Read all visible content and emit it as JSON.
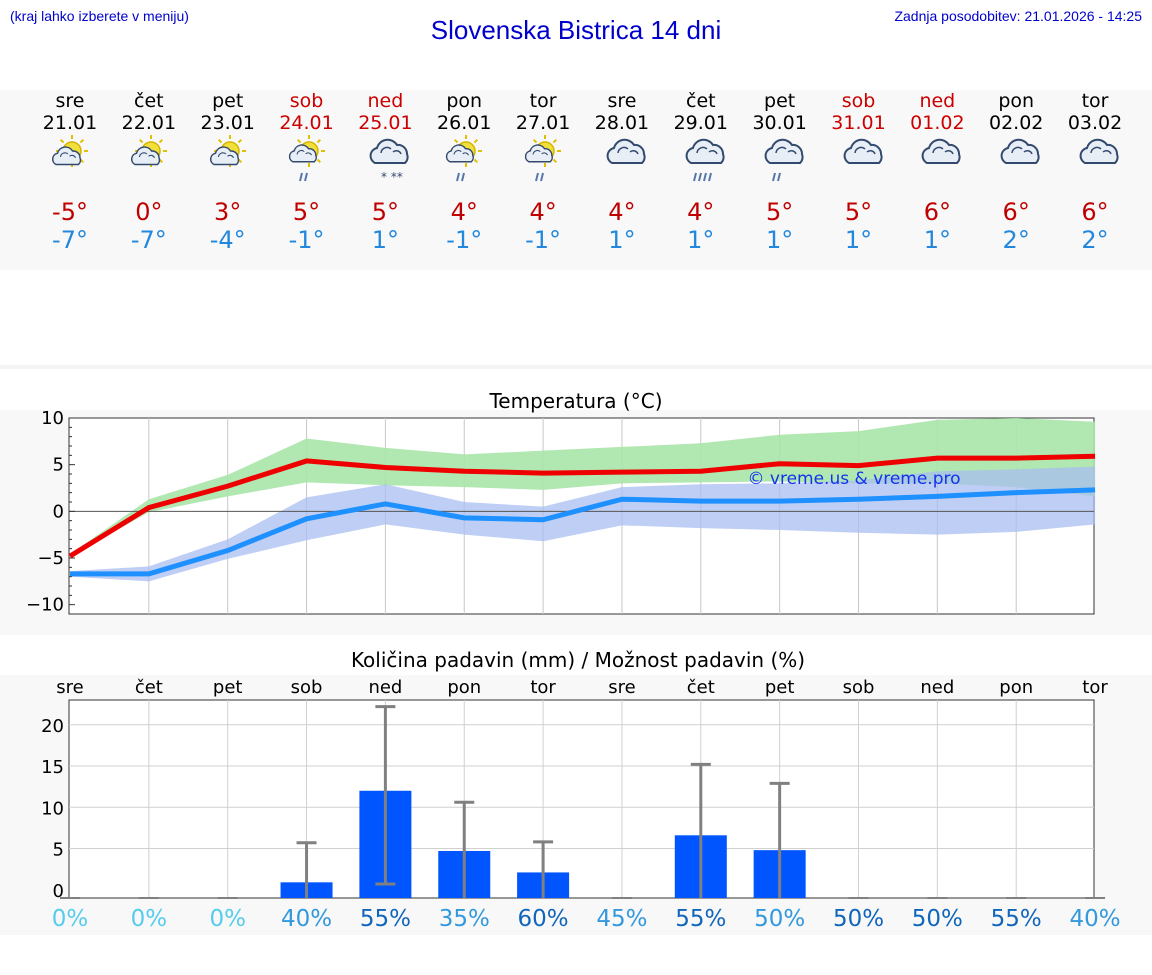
{
  "header": {
    "hint": "(kraj lahko izberete v meniju)",
    "title": "Slovenska Bistrica 14 dni",
    "updated": "Zadnja posodobitev: 21.01.2026 - 14:25"
  },
  "days": [
    {
      "name": "sre",
      "date": "21.01",
      "weekend": false,
      "icon": "sun-cloud-icon",
      "max": "-5°",
      "min": "-7°"
    },
    {
      "name": "čet",
      "date": "22.01",
      "weekend": false,
      "icon": "sun-cloud-icon",
      "max": "0°",
      "min": "-7°"
    },
    {
      "name": "pet",
      "date": "23.01",
      "weekend": false,
      "icon": "sun-cloud-icon",
      "max": "3°",
      "min": "-4°"
    },
    {
      "name": "sob",
      "date": "24.01",
      "weekend": true,
      "icon": "sun-cloud-rain-icon",
      "max": "5°",
      "min": "-1°"
    },
    {
      "name": "ned",
      "date": "25.01",
      "weekend": true,
      "icon": "cloud-snow-icon",
      "max": "5°",
      "min": "1°"
    },
    {
      "name": "pon",
      "date": "26.01",
      "weekend": false,
      "icon": "sun-cloud-rain-icon",
      "max": "4°",
      "min": "-1°"
    },
    {
      "name": "tor",
      "date": "27.01",
      "weekend": false,
      "icon": "sun-cloud-rain-icon",
      "max": "4°",
      "min": "-1°"
    },
    {
      "name": "sre",
      "date": "28.01",
      "weekend": false,
      "icon": "cloud-icon",
      "max": "4°",
      "min": "1°"
    },
    {
      "name": "čet",
      "date": "29.01",
      "weekend": false,
      "icon": "cloud-heavy-rain-icon",
      "max": "4°",
      "min": "1°"
    },
    {
      "name": "pet",
      "date": "30.01",
      "weekend": false,
      "icon": "cloud-rain-icon",
      "max": "5°",
      "min": "1°"
    },
    {
      "name": "sob",
      "date": "31.01",
      "weekend": true,
      "icon": "cloud-icon",
      "max": "5°",
      "min": "1°"
    },
    {
      "name": "ned",
      "date": "01.02",
      "weekend": true,
      "icon": "cloud-icon",
      "max": "6°",
      "min": "1°"
    },
    {
      "name": "pon",
      "date": "02.02",
      "weekend": false,
      "icon": "cloud-icon",
      "max": "6°",
      "min": "2°"
    },
    {
      "name": "tor",
      "date": "03.02",
      "weekend": false,
      "icon": "cloud-icon",
      "max": "6°",
      "min": "2°"
    }
  ],
  "colors": {
    "max_line": "#ee0000",
    "min_line": "#1e90ff",
    "max_band": "#a8e4a8",
    "min_band": "#a8bdf0",
    "bar": "#0055ff",
    "err": "#808080",
    "title_blue": "#0000cc"
  },
  "chart_data": [
    {
      "type": "line",
      "title": "Temperatura (°C)",
      "watermark": "© vreme.us & vreme.pro",
      "ylim": [
        -11,
        10
      ],
      "yticks": [
        10,
        5,
        0,
        -5,
        -10
      ],
      "ytick_labels": [
        "10",
        "5",
        "0",
        "−5",
        "−10"
      ],
      "categories": [
        "21.01",
        "22.01",
        "23.01",
        "24.01",
        "25.01",
        "26.01",
        "27.01",
        "28.01",
        "29.01",
        "30.01",
        "31.01",
        "01.02",
        "02.02",
        "03.02"
      ],
      "series": [
        {
          "name": "max",
          "values": [
            -4.8,
            0.4,
            2.7,
            5.4,
            4.7,
            4.3,
            4.1,
            4.2,
            4.3,
            5.1,
            4.9,
            5.7,
            5.7,
            5.9
          ],
          "band_low": [
            -4.8,
            -0.1,
            1.6,
            3.1,
            2.8,
            2.6,
            2.3,
            3.0,
            3.1,
            3.2,
            3.0,
            3.0,
            2.6,
            1.6
          ],
          "band_high": [
            -4.6,
            1.3,
            3.9,
            7.8,
            6.8,
            6.1,
            6.5,
            6.9,
            7.3,
            8.2,
            8.6,
            9.8,
            10.0,
            9.6
          ]
        },
        {
          "name": "min",
          "values": [
            -6.7,
            -6.7,
            -4.2,
            -0.8,
            0.8,
            -0.7,
            -0.9,
            1.3,
            1.1,
            1.1,
            1.3,
            1.6,
            2.0,
            2.3
          ],
          "band_low": [
            -7.0,
            -7.5,
            -5.1,
            -3.1,
            -1.4,
            -2.5,
            -3.2,
            -1.5,
            -1.8,
            -2.0,
            -2.3,
            -2.5,
            -2.2,
            -1.4
          ],
          "band_high": [
            -6.4,
            -5.9,
            -3.0,
            1.5,
            2.9,
            1.0,
            0.5,
            2.6,
            2.9,
            3.0,
            3.3,
            4.3,
            4.5,
            4.8
          ]
        }
      ]
    },
    {
      "type": "bar",
      "title": "Količina padavin (mm) / Možnost padavin (%)",
      "categories": [
        "sre",
        "čet",
        "pet",
        "sob",
        "ned",
        "pon",
        "tor",
        "sre",
        "čet",
        "pet",
        "sob",
        "ned",
        "pon",
        "tor"
      ],
      "values": [
        0,
        0,
        0,
        0.9,
        12,
        4.7,
        2.1,
        0,
        6.6,
        4.8,
        0,
        0,
        0,
        0
      ],
      "err_low": [
        0,
        0,
        0,
        0,
        0.7,
        0,
        0,
        0,
        0,
        0,
        0,
        0,
        0,
        0
      ],
      "err_high": [
        0,
        0,
        0,
        5.7,
        22.2,
        10.6,
        5.8,
        0,
        15.2,
        12.9,
        0,
        0,
        0,
        0
      ],
      "ylim": [
        -1,
        23
      ],
      "yticks": [
        20,
        15,
        10,
        5,
        0
      ],
      "ytick_labels": [
        "20",
        "15",
        "10",
        "5",
        "0"
      ],
      "probability": [
        "0%",
        "0%",
        "0%",
        "40%",
        "55%",
        "35%",
        "60%",
        "45%",
        "55%",
        "50%",
        "50%",
        "50%",
        "55%",
        "40%"
      ],
      "probability_colors": [
        "#55ccee",
        "#55ccee",
        "#55ccee",
        "#3399dd",
        "#1166bb",
        "#3399dd",
        "#1166bb",
        "#3399dd",
        "#1166bb",
        "#3399dd",
        "#1166bb",
        "#1166bb",
        "#1166bb",
        "#3399dd"
      ]
    }
  ]
}
